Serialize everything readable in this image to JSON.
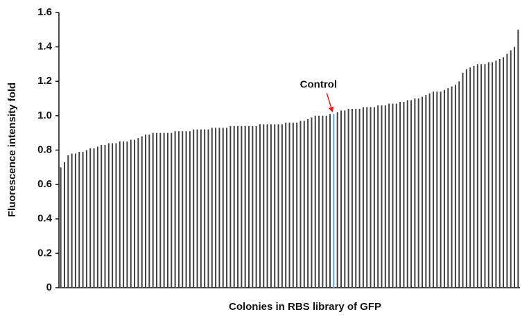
{
  "chart_data": {
    "type": "bar",
    "xlabel": "Colonies in RBS library of GFP",
    "ylabel": "Fluorescence intensity fold",
    "annotation": "Control",
    "annotation_color": "#e02020",
    "color": "#404040",
    "highlight_index": 74,
    "highlight_color": "#5aa9d8",
    "ylim": [
      0,
      1.6
    ],
    "yticks": [
      0,
      0.2,
      0.4,
      0.6,
      0.8,
      {
        "value": 1,
        "label": "1.0"
      },
      1.2,
      1.4,
      1.6
    ],
    "categories": [
      null,
      null,
      null,
      null,
      null,
      null,
      null,
      null,
      null,
      null,
      null,
      null,
      null,
      null,
      null,
      null,
      null,
      null,
      null,
      null,
      null,
      null,
      null,
      null,
      null,
      null,
      null,
      null,
      null,
      null,
      null,
      null,
      null,
      null,
      null,
      null,
      null,
      null,
      null,
      null,
      null,
      null,
      null,
      null,
      null,
      null,
      null,
      null,
      null,
      null,
      null,
      null,
      null,
      null,
      null,
      null,
      null,
      null,
      null,
      null,
      null,
      null,
      null,
      null,
      null,
      null,
      null,
      null,
      null,
      null,
      null,
      null,
      null,
      null,
      null,
      null,
      null,
      null,
      null,
      null,
      null,
      null,
      null,
      null,
      null,
      null,
      null,
      null,
      null,
      null,
      null,
      null,
      null,
      null,
      null,
      null,
      null,
      null,
      null,
      null,
      null,
      null,
      null,
      null,
      null,
      null,
      null,
      null,
      null,
      null,
      null,
      null,
      null,
      null,
      null,
      null,
      null,
      null,
      null,
      null,
      null,
      null,
      null,
      null,
      null
    ],
    "values": [
      0.7,
      0.73,
      0.77,
      0.78,
      0.78,
      0.79,
      0.79,
      0.8,
      0.81,
      0.81,
      0.82,
      0.83,
      0.83,
      0.84,
      0.84,
      0.84,
      0.85,
      0.85,
      0.85,
      0.86,
      0.86,
      0.87,
      0.88,
      0.89,
      0.89,
      0.9,
      0.9,
      0.9,
      0.9,
      0.9,
      0.9,
      0.91,
      0.91,
      0.91,
      0.91,
      0.91,
      0.92,
      0.92,
      0.92,
      0.92,
      0.92,
      0.93,
      0.93,
      0.93,
      0.93,
      0.93,
      0.94,
      0.94,
      0.94,
      0.94,
      0.94,
      0.94,
      0.94,
      0.94,
      0.95,
      0.95,
      0.95,
      0.95,
      0.95,
      0.95,
      0.95,
      0.96,
      0.96,
      0.96,
      0.96,
      0.97,
      0.97,
      0.98,
      0.99,
      1.0,
      1.0,
      1.0,
      1.0,
      1.01,
      1.01,
      1.02,
      1.03,
      1.03,
      1.04,
      1.04,
      1.04,
      1.04,
      1.05,
      1.05,
      1.05,
      1.05,
      1.06,
      1.06,
      1.06,
      1.07,
      1.07,
      1.07,
      1.08,
      1.08,
      1.09,
      1.09,
      1.1,
      1.1,
      1.11,
      1.12,
      1.13,
      1.14,
      1.14,
      1.14,
      1.15,
      1.16,
      1.17,
      1.18,
      1.2,
      1.25,
      1.27,
      1.28,
      1.29,
      1.3,
      1.3,
      1.3,
      1.31,
      1.31,
      1.32,
      1.33,
      1.34,
      1.36,
      1.38,
      1.4,
      1.5
    ]
  }
}
